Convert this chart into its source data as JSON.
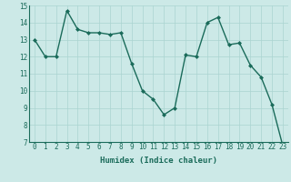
{
  "x": [
    0,
    1,
    2,
    3,
    4,
    5,
    6,
    7,
    8,
    9,
    10,
    11,
    12,
    13,
    14,
    15,
    16,
    17,
    18,
    19,
    20,
    21,
    22,
    23
  ],
  "y": [
    13.0,
    12.0,
    12.0,
    14.7,
    13.6,
    13.4,
    13.4,
    13.3,
    13.4,
    11.6,
    10.0,
    9.5,
    8.6,
    9.0,
    12.1,
    12.0,
    14.0,
    14.3,
    12.7,
    12.8,
    11.5,
    10.8,
    9.2,
    6.8
  ],
  "line_color": "#1a6b5a",
  "marker": "D",
  "marker_size": 2,
  "bg_color": "#cce9e7",
  "grid_color": "#aad4d1",
  "xlabel": "Humidex (Indice chaleur)",
  "ylim": [
    7,
    15
  ],
  "xlim_min": -0.5,
  "xlim_max": 23.5,
  "yticks": [
    7,
    8,
    9,
    10,
    11,
    12,
    13,
    14,
    15
  ],
  "xticks": [
    0,
    1,
    2,
    3,
    4,
    5,
    6,
    7,
    8,
    9,
    10,
    11,
    12,
    13,
    14,
    15,
    16,
    17,
    18,
    19,
    20,
    21,
    22,
    23
  ],
  "tick_fontsize": 5.5,
  "xlabel_fontsize": 6.5,
  "line_width": 1.0
}
